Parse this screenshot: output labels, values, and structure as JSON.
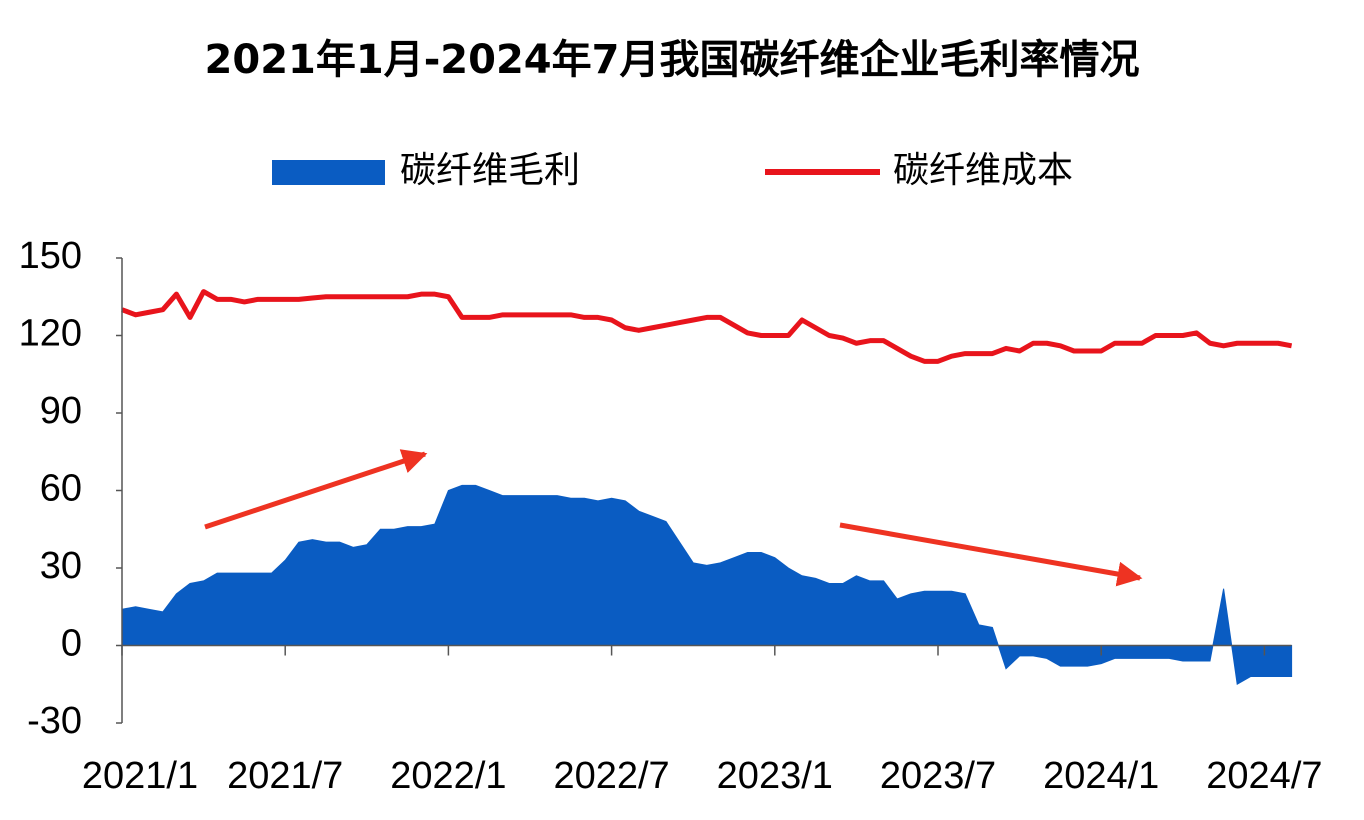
{
  "chart_data": {
    "type": "line",
    "title": "2021年1月-2024年7月我国碳纤维企业毛利率情况",
    "categories": [
      "2021/1",
      null,
      null,
      null,
      null,
      null,
      null,
      null,
      null,
      null,
      null,
      null,
      "2021/7",
      null,
      null,
      null,
      null,
      null,
      null,
      null,
      null,
      null,
      null,
      null,
      "2022/1",
      null,
      null,
      null,
      null,
      null,
      null,
      null,
      null,
      null,
      null,
      null,
      "2022/7",
      null,
      null,
      null,
      null,
      null,
      null,
      null,
      null,
      null,
      null,
      null,
      "2023/1",
      null,
      null,
      null,
      null,
      null,
      null,
      null,
      null,
      null,
      null,
      null,
      "2023/7",
      null,
      null,
      null,
      null,
      null,
      null,
      null,
      null,
      null,
      null,
      null,
      "2024/1",
      null,
      null,
      null,
      null,
      null,
      null,
      null,
      null,
      null,
      null,
      null,
      "2024/7",
      null,
      null
    ],
    "series": [
      {
        "name": "碳纤维毛利",
        "type": "area",
        "color": "#0a5cc2",
        "values": [
          14,
          15,
          14,
          13,
          20,
          24,
          25,
          28,
          28,
          28,
          28,
          28,
          33,
          40,
          41,
          40,
          40,
          38,
          39,
          45,
          45,
          46,
          46,
          47,
          60,
          62,
          62,
          60,
          58,
          58,
          58,
          58,
          58,
          57,
          57,
          56,
          57,
          56,
          52,
          50,
          48,
          40,
          32,
          31,
          32,
          34,
          36,
          36,
          34,
          30,
          27,
          26,
          24,
          24,
          27,
          25,
          25,
          18,
          20,
          21,
          21,
          21,
          20,
          8,
          7,
          -9,
          -4,
          -4,
          -5,
          -8,
          -8,
          -8,
          -7,
          -5,
          -5,
          -5,
          -5,
          -5,
          -6,
          -6,
          -6,
          22,
          -15,
          -12,
          -12,
          -12,
          -12
        ]
      },
      {
        "name": "碳纤维成本",
        "type": "line",
        "color": "#e8141c",
        "values": [
          130,
          128,
          129,
          130,
          136,
          127,
          137,
          134,
          134,
          133,
          134,
          134,
          134,
          134,
          134.5,
          135,
          135,
          135,
          135,
          135,
          135,
          135,
          136,
          136,
          135,
          127,
          127,
          127,
          128,
          128,
          128,
          128,
          128,
          128,
          127,
          127,
          126,
          123,
          122,
          123,
          124,
          125,
          126,
          127,
          127,
          124,
          121,
          120,
          120,
          120,
          126,
          123,
          120,
          119,
          117,
          118,
          118,
          115,
          112,
          110,
          110,
          112,
          113,
          113,
          113,
          115,
          114,
          117,
          117,
          116,
          114,
          114,
          114,
          117,
          117,
          117,
          120,
          120,
          120,
          121,
          117,
          116,
          117,
          117,
          117,
          117,
          116
        ]
      }
    ],
    "ylim": [
      -30,
      150
    ],
    "yticks": [
      -30,
      0,
      30,
      60,
      90,
      120,
      150
    ]
  }
}
